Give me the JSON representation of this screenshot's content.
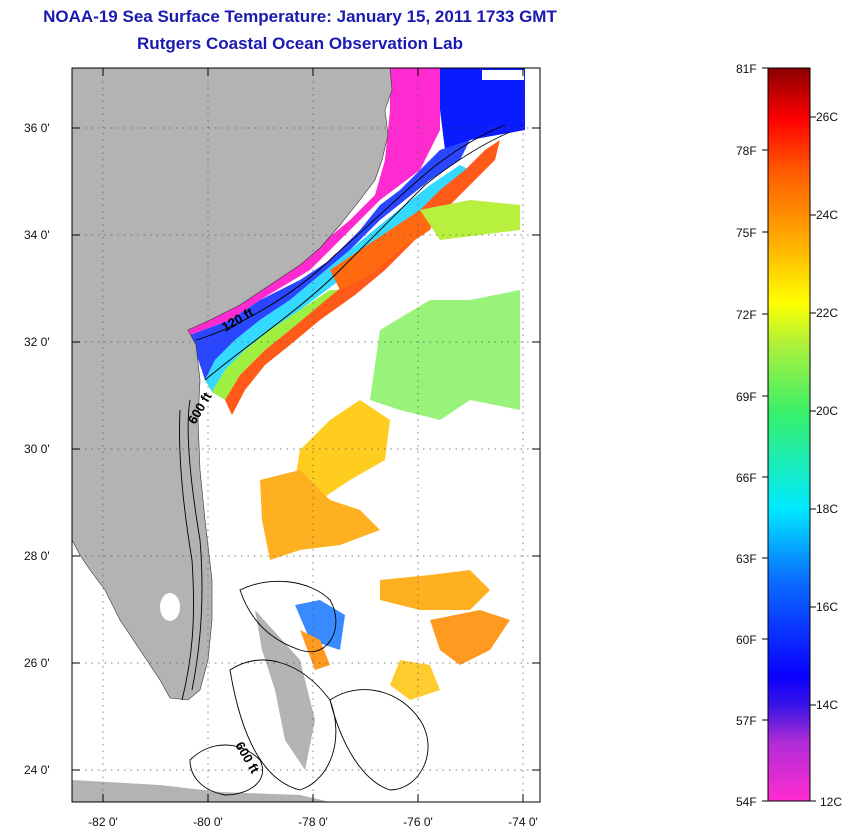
{
  "title": {
    "line1": "NOAA-19 Sea Surface Temperature:  January 15, 2011 1733 GMT",
    "line2": "Rutgers Coastal Ocean Observation Lab"
  },
  "map": {
    "lat_range": [
      23,
      37
    ],
    "lon_range": [
      -83,
      -73
    ],
    "lat_ticks": [
      "36 0'",
      "34 0'",
      "32 0'",
      "30 0'",
      "28 0'",
      "26 0'",
      "24 0'"
    ],
    "lon_ticks": [
      "-82 0'",
      "-80 0'",
      "-78 0'",
      "-76 0'",
      "-74 0'"
    ],
    "contour_labels": [
      "120 ft",
      "600 ft",
      "600 ft"
    ],
    "land_color": "#b3b3b3",
    "grid": "dotted"
  },
  "colorbar": {
    "fahrenheit": [
      "81F",
      "78F",
      "75F",
      "72F",
      "69F",
      "66F",
      "63F",
      "60F",
      "57F",
      "54F"
    ],
    "celsius": [
      "26C",
      "24C",
      "22C",
      "20C",
      "18C",
      "16C",
      "14C",
      "12C"
    ],
    "stops": [
      "#ff2bd0",
      "#7a2cd6",
      "#0a00ff",
      "#0a6cff",
      "#00eaff",
      "#39f06a",
      "#aaf03c",
      "#ffff00",
      "#ffb000",
      "#ff5a00",
      "#ff0000",
      "#8a0000"
    ]
  }
}
